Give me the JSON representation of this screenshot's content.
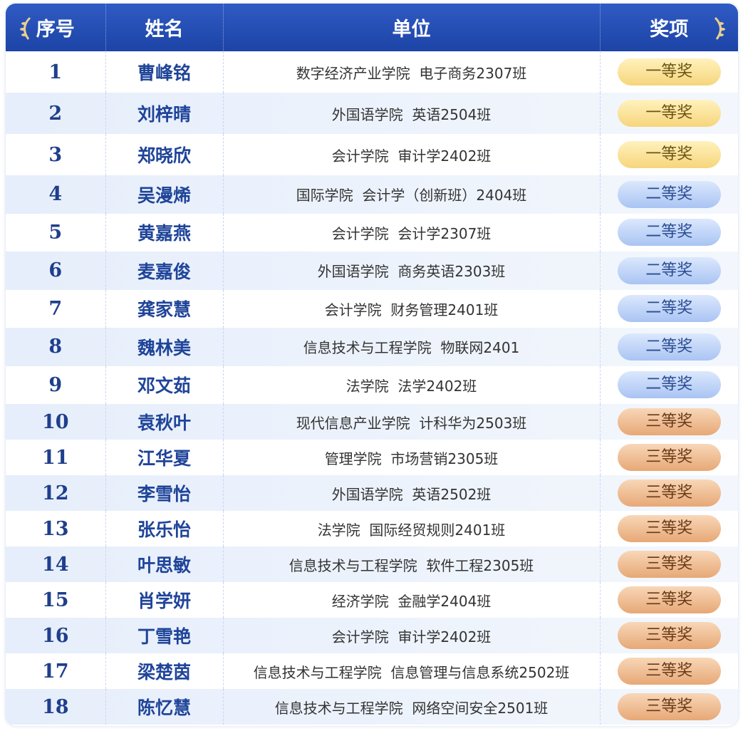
{
  "table": {
    "header": [
      "序号",
      "姓名",
      "单位",
      "奖项"
    ],
    "rows": [
      [
        "1",
        "曹峰铭",
        "数字经济产业学院  电子商务2307班",
        "一等奖"
      ],
      [
        "2",
        "刘梓晴",
        "外国语学院  英语2504班",
        "一等奖"
      ],
      [
        "3",
        "郑晓欣",
        "会计学院  审计学2402班",
        "一等奖"
      ],
      [
        "4",
        "吴漫烯",
        "国际学院  会计学（创新班）2404班",
        "二等奖"
      ],
      [
        "5",
        "黄嘉燕",
        "会计学院  会计学2307班",
        "二等奖"
      ],
      [
        "6",
        "麦嘉俊",
        "外国语学院  商务英语2303班",
        "二等奖"
      ],
      [
        "7",
        "龚家慧",
        "会计学院  财务管理2401班",
        "二等奖"
      ],
      [
        "8",
        "魏林美",
        "信息技术与工程学院  物联网2401",
        "二等奖"
      ],
      [
        "9",
        "邓文茹",
        "法学院  法学2402班",
        "二等奖"
      ],
      [
        "10",
        "袁秋叶",
        "现代信息产业学院  计科华为2503班",
        "三等奖"
      ],
      [
        "11",
        "江华夏",
        "管理学院  市场营销2305班",
        "三等奖"
      ],
      [
        "12",
        "李雪怡",
        "外国语学院  英语2502班",
        "三等奖"
      ],
      [
        "13",
        "张乐怡",
        "法学院  国际经贸规则2401班",
        "三等奖"
      ],
      [
        "14",
        "叶思敏",
        "信息技术与工程学院  软件工程2305班",
        "三等奖"
      ],
      [
        "15",
        "肖学妍",
        "经济学院  金融学2404班",
        "三等奖"
      ],
      [
        "16",
        "丁雪艳",
        "会计学院  审计学2402班",
        "三等奖"
      ],
      [
        "17",
        "梁楚茵",
        "信息技术与工程学院  信息管理与信息系统2502班",
        "三等奖"
      ],
      [
        "18",
        "陈忆慧",
        "信息技术与工程学院  网络空间安全2501班",
        "三等奖"
      ]
    ]
  }
}
